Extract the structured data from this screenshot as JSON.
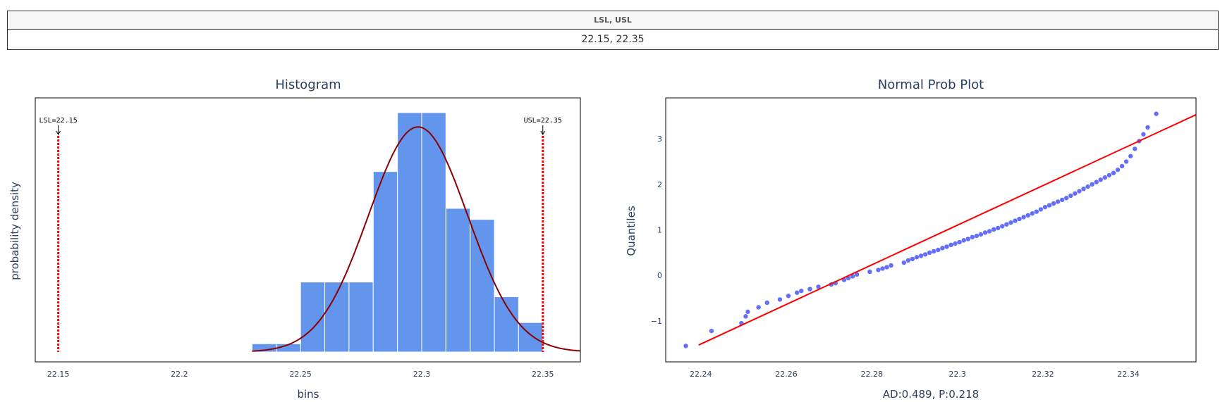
{
  "spec_table": {
    "header": "LSL, USL",
    "value": "22.15, 22.35"
  },
  "colors": {
    "bar": "#6495ed",
    "density_curve": "#8b0000",
    "spec_line": "#ff0000",
    "points": "#636efa",
    "fit_line": "#ff0000"
  },
  "chart_data": [
    {
      "type": "bar",
      "title": "Histogram",
      "xlabel": "bins",
      "ylabel": "probability density",
      "xlim": [
        22.1405,
        22.3655
      ],
      "x_ticks": [
        "22.15",
        "22.2",
        "22.25",
        "22.3",
        "22.35"
      ],
      "x_tick_values": [
        22.15,
        22.2,
        22.25,
        22.3,
        22.35
      ],
      "bin_edges": [
        22.23,
        22.24,
        22.25,
        22.26,
        22.27,
        22.28,
        22.29,
        22.3,
        22.31,
        22.32,
        22.33,
        22.34,
        22.35
      ],
      "values": [
        0.45,
        0.45,
        3.8,
        3.8,
        3.8,
        9.8,
        13.0,
        13.0,
        7.8,
        7.2,
        3.0,
        1.6
      ],
      "ylim": [
        0,
        13.8
      ],
      "density_curve": {
        "mean": 22.2985,
        "std": 0.0205
      },
      "spec_limits": [
        {
          "label": "LSL=22.15",
          "x": 22.15
        },
        {
          "label": "USL=22.35",
          "x": 22.35
        }
      ],
      "grid": false,
      "legend": "none"
    },
    {
      "type": "scatter",
      "title": "Normal Prob Plot",
      "xlabel": "AD:0.489, P:0.218",
      "ylabel": "Quantiles",
      "xlim": [
        22.2318,
        22.3558
      ],
      "ylim": [
        -1.9,
        3.9
      ],
      "x_ticks": [
        "22.24",
        "22.26",
        "22.28",
        "22.3",
        "22.32",
        "22.34"
      ],
      "x_tick_values": [
        22.24,
        22.26,
        22.28,
        22.3,
        22.32,
        22.34
      ],
      "y_ticks": [
        "−1",
        "0",
        "1",
        "2",
        "3"
      ],
      "y_tick_values": [
        -1,
        0,
        1,
        2,
        3
      ],
      "points": [
        [
          22.2365,
          -1.55
        ],
        [
          22.2425,
          -1.22
        ],
        [
          22.2495,
          -1.05
        ],
        [
          22.2505,
          -0.9
        ],
        [
          22.251,
          -0.8
        ],
        [
          22.2535,
          -0.7
        ],
        [
          22.2555,
          -0.6
        ],
        [
          22.2585,
          -0.53
        ],
        [
          22.2605,
          -0.45
        ],
        [
          22.2625,
          -0.38
        ],
        [
          22.2635,
          -0.34
        ],
        [
          22.2655,
          -0.3
        ],
        [
          22.2675,
          -0.25
        ],
        [
          22.2705,
          -0.2
        ],
        [
          22.2715,
          -0.17
        ],
        [
          22.2735,
          -0.1
        ],
        [
          22.2745,
          -0.06
        ],
        [
          22.2755,
          -0.02
        ],
        [
          22.2765,
          0.02
        ],
        [
          22.2795,
          0.08
        ],
        [
          22.2815,
          0.12
        ],
        [
          22.2825,
          0.15
        ],
        [
          22.2835,
          0.18
        ],
        [
          22.2845,
          0.22
        ],
        [
          22.2875,
          0.28
        ],
        [
          22.2885,
          0.33
        ],
        [
          22.2895,
          0.36
        ],
        [
          22.2905,
          0.4
        ],
        [
          22.2915,
          0.43
        ],
        [
          22.2925,
          0.46
        ],
        [
          22.2935,
          0.5
        ],
        [
          22.2945,
          0.53
        ],
        [
          22.2955,
          0.56
        ],
        [
          22.2965,
          0.6
        ],
        [
          22.2975,
          0.63
        ],
        [
          22.2985,
          0.67
        ],
        [
          22.2995,
          0.7
        ],
        [
          22.3005,
          0.73
        ],
        [
          22.3015,
          0.77
        ],
        [
          22.3025,
          0.8
        ],
        [
          22.3035,
          0.84
        ],
        [
          22.3045,
          0.87
        ],
        [
          22.3055,
          0.9
        ],
        [
          22.3065,
          0.94
        ],
        [
          22.3075,
          0.97
        ],
        [
          22.3085,
          1.01
        ],
        [
          22.3095,
          1.04
        ],
        [
          22.3105,
          1.08
        ],
        [
          22.3115,
          1.12
        ],
        [
          22.3125,
          1.16
        ],
        [
          22.3135,
          1.2
        ],
        [
          22.3145,
          1.24
        ],
        [
          22.3155,
          1.28
        ],
        [
          22.3165,
          1.32
        ],
        [
          22.3175,
          1.36
        ],
        [
          22.3185,
          1.4
        ],
        [
          22.3195,
          1.45
        ],
        [
          22.3205,
          1.5
        ],
        [
          22.3215,
          1.54
        ],
        [
          22.3225,
          1.58
        ],
        [
          22.3235,
          1.62
        ],
        [
          22.3245,
          1.66
        ],
        [
          22.3255,
          1.7
        ],
        [
          22.3265,
          1.75
        ],
        [
          22.3275,
          1.8
        ],
        [
          22.3285,
          1.85
        ],
        [
          22.3295,
          1.9
        ],
        [
          22.3305,
          1.95
        ],
        [
          22.3315,
          2.0
        ],
        [
          22.3325,
          2.05
        ],
        [
          22.3335,
          2.1
        ],
        [
          22.3345,
          2.15
        ],
        [
          22.3355,
          2.2
        ],
        [
          22.3365,
          2.25
        ],
        [
          22.3375,
          2.32
        ],
        [
          22.3385,
          2.4
        ],
        [
          22.3395,
          2.5
        ],
        [
          22.3405,
          2.62
        ],
        [
          22.3415,
          2.78
        ],
        [
          22.3425,
          2.95
        ],
        [
          22.3435,
          3.1
        ],
        [
          22.3445,
          3.25
        ],
        [
          22.3465,
          3.55
        ]
      ],
      "fit_line": [
        [
          22.2395,
          -1.53
        ],
        [
          22.3558,
          3.53
        ]
      ],
      "grid": false,
      "legend": "none"
    }
  ]
}
